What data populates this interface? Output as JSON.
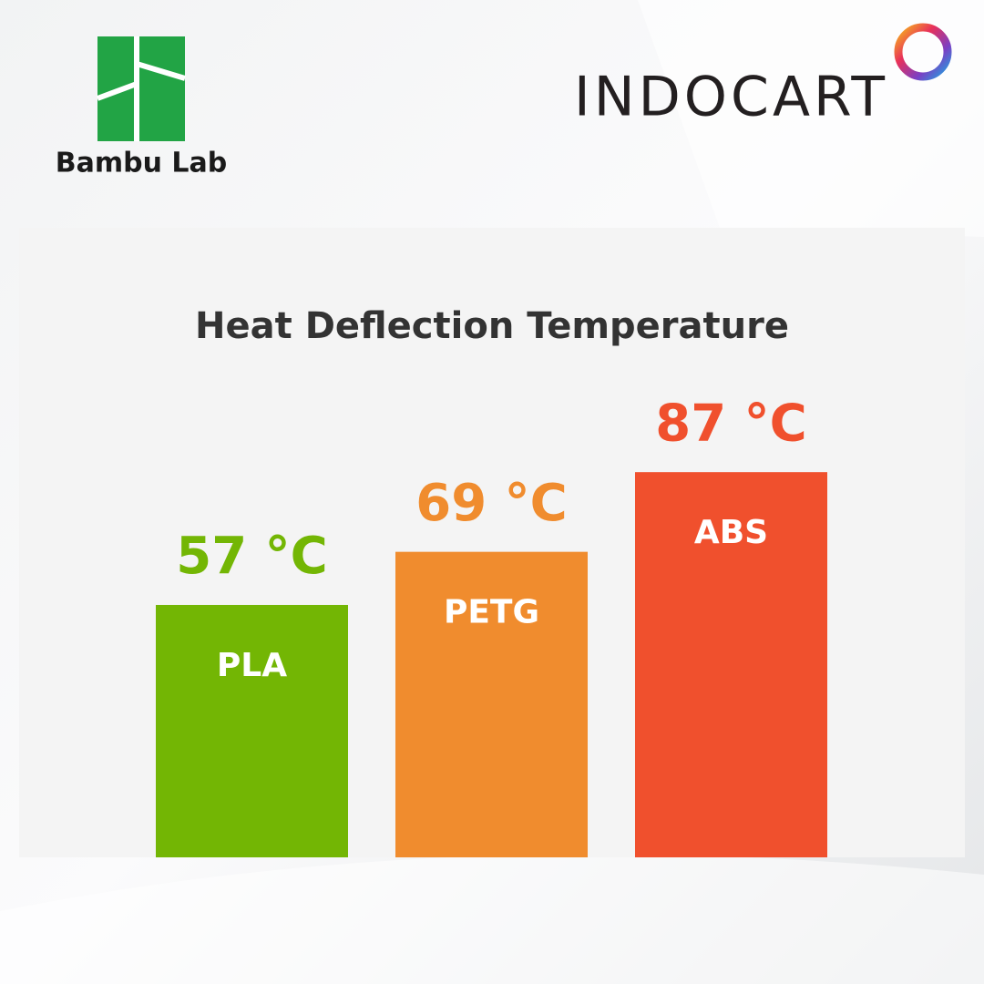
{
  "logos": {
    "left": "Bambu Lab",
    "right": "INDOCART"
  },
  "chart_data": {
    "type": "bar",
    "title": "Heat Deflection Temperature",
    "categories": [
      "PLA",
      "PETG",
      "ABS"
    ],
    "values": [
      57,
      69,
      87
    ],
    "value_labels": [
      "57 °C",
      "69 °C",
      "87 °C"
    ],
    "colors": [
      "#73b604",
      "#f08c2e",
      "#f0502d"
    ]
  }
}
